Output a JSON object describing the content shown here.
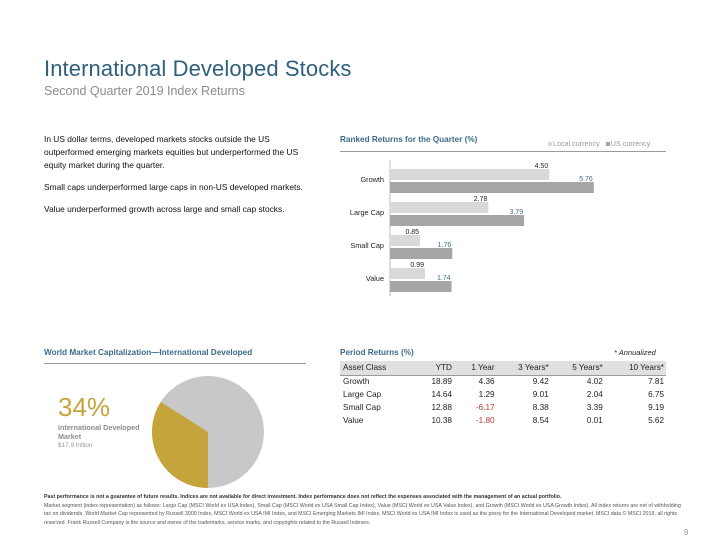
{
  "header": {
    "title": "International Developed Stocks",
    "subtitle": "Second Quarter 2019 Index Returns"
  },
  "intro": {
    "p1": "In US dollar terms, developed markets stocks outside the US outperformed emerging markets equities but underperformed the US equity market during the quarter.",
    "p2": "Small caps underperformed large caps in non-US developed markets.",
    "p3": "Value underperformed growth across large and small cap stocks."
  },
  "ranked": {
    "heading": "Ranked Returns for the Quarter (%)",
    "legend_local": "Local currency",
    "legend_us": "US currency"
  },
  "chart_data": {
    "type": "bar",
    "orientation": "horizontal",
    "title": "Ranked Returns for the Quarter (%)",
    "categories": [
      "Growth",
      "Large Cap",
      "Small Cap",
      "Value"
    ],
    "series": [
      {
        "name": "Local currency",
        "values": [
          4.5,
          2.78,
          0.85,
          0.99
        ],
        "color": "#d9d9d9"
      },
      {
        "name": "US currency",
        "values": [
          5.76,
          3.79,
          1.76,
          1.74
        ],
        "color": "#a6a6a6"
      }
    ],
    "value_labels": [
      [
        "4.50",
        "2.78",
        "0.85",
        "0.99"
      ],
      [
        "5.76",
        "3.79",
        "1.76",
        "1.74"
      ]
    ],
    "xlim": [
      0,
      6.5
    ],
    "legend": "top-right",
    "grid": false
  },
  "world": {
    "heading": "World Market Capitalization—International Developed",
    "percent": "34%",
    "label": "International Developed Market",
    "caption": "$17.9 trillion",
    "pie": {
      "share": 34,
      "colors": {
        "share": "#c4a43b",
        "rest": "#c8c8c8"
      }
    }
  },
  "period": {
    "heading": "Period Returns (%)",
    "annotation": "* Annualized",
    "columns": [
      "Asset Class",
      "YTD",
      "1 Year",
      "3 Years*",
      "5 Years*",
      "10 Years*"
    ],
    "rows": [
      [
        "Growth",
        "18.89",
        "4.36",
        "9.42",
        "4.02",
        "7.81"
      ],
      [
        "Large Cap",
        "14.64",
        "1.29",
        "9.01",
        "2.04",
        "6.75"
      ],
      [
        "Small Cap",
        "12.88",
        "-6.17",
        "8.38",
        "3.39",
        "9.19"
      ],
      [
        "Value",
        "10.38",
        "-1.80",
        "8.54",
        "0.01",
        "5.62"
      ]
    ]
  },
  "footer": {
    "bold": "Past performance is not a guarantee of future results. Indices are not available for direct investment. Index performance does not reflect the expenses associated with the management of an actual portfolio.",
    "text": "Market segment (index representation) as follows: Large Cap (MSCI World ex USA Index), Small Cap (MSCI World ex USA Small Cap Index), Value (MSCI World ex USA Value Index), and Growth (MSCI World ex USA Growth Index). All index returns are net of withholding tax on dividends. World Market Cap represented by Russell 3000 Index, MSCI World ex USA IMI Index, and MSCI Emerging Markets IMI Index. MSCI World ex USA IMI Index is used as the proxy for the International Developed market. MSCI data © MSCI 2019, all rights reserved. Frank Russell Company is the source and owner of the trademarks, service marks, and copyrights related to the Russell Indexes.",
    "page": "9"
  }
}
